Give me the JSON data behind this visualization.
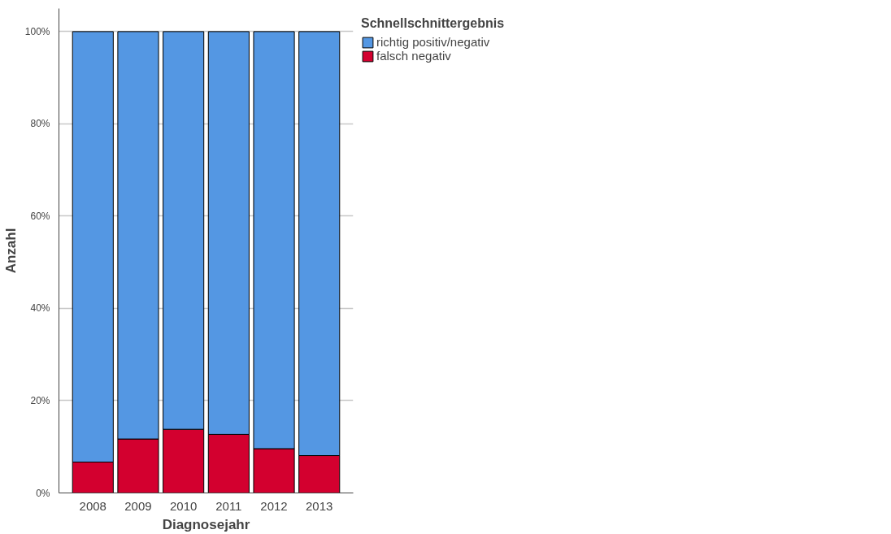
{
  "chart_data": {
    "type": "bar",
    "stacked": true,
    "xlabel": "Diagnosejahr",
    "ylabel": "Anzahl",
    "legend_title": "Schnellschnittergebnis",
    "categories": [
      "2008",
      "2009",
      "2010",
      "2011",
      "2012",
      "2013"
    ],
    "series": [
      {
        "name": "falsch negativ",
        "color": "#d3002f",
        "values": [
          6.7,
          11.7,
          13.8,
          12.7,
          9.6,
          8.1
        ]
      },
      {
        "name": "richtig positiv/negativ",
        "color": "#5497e3",
        "values": [
          93.3,
          88.3,
          86.2,
          87.3,
          90.4,
          91.9
        ]
      }
    ],
    "ylim": [
      0,
      105
    ],
    "yticks": [
      {
        "value": 0,
        "label": "0%"
      },
      {
        "value": 20,
        "label": "20%"
      },
      {
        "value": 40,
        "label": "40%"
      },
      {
        "value": 60,
        "label": "60%"
      },
      {
        "value": 80,
        "label": "80%"
      },
      {
        "value": 100,
        "label": "100%"
      }
    ],
    "grid": "y",
    "legend": "top right"
  }
}
